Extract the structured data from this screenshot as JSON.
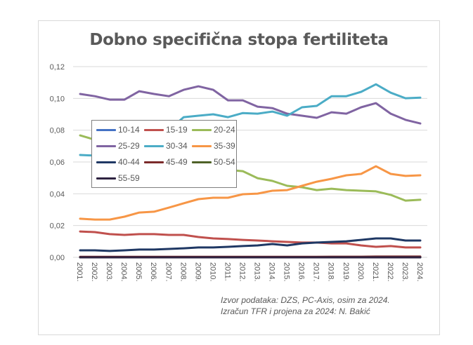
{
  "chart_data": {
    "type": "line",
    "title": "Dobno specifična stopa fertiliteta",
    "xlabel": "",
    "ylabel": "",
    "ylim": [
      0,
      0.12
    ],
    "yticks": [
      "0,00",
      "0,02",
      "0,04",
      "0,06",
      "0,08",
      "0,10",
      "0,12"
    ],
    "ytick_values": [
      0,
      0.02,
      0.04,
      0.06,
      0.08,
      0.1,
      0.12
    ],
    "grid": true,
    "legend_position": "upper-left inside",
    "categories": [
      "2001.",
      "2002.",
      "2003.",
      "2004.",
      "2005.",
      "2006.",
      "2007.",
      "2008.",
      "2009.",
      "2010.",
      "2011.",
      "2012.",
      "2013.",
      "2014.",
      "2015.",
      "2016.",
      "2017.",
      "2018.",
      "2019.",
      "2020.",
      "2021.",
      "2022.",
      "2023.",
      "2024."
    ],
    "series": [
      {
        "name": "10-14",
        "color": "#4472c4",
        "values": [
          0.0001,
          0.0001,
          0.0001,
          0.0001,
          0.0001,
          0.0001,
          0.0001,
          0.0001,
          0.0001,
          0.0001,
          0.0001,
          0.0001,
          0.0001,
          0.0001,
          0.0001,
          0.0001,
          0.0001,
          0.0001,
          0.0001,
          0.0001,
          0.0001,
          0.0001,
          0.0001,
          0.0001
        ]
      },
      {
        "name": "15-19",
        "color": "#c0504d",
        "values": [
          0.0163,
          0.0159,
          0.0146,
          0.0141,
          0.0146,
          0.0146,
          0.0141,
          0.0141,
          0.0128,
          0.0119,
          0.0115,
          0.011,
          0.0106,
          0.0101,
          0.0097,
          0.0093,
          0.0093,
          0.0088,
          0.0088,
          0.0075,
          0.0066,
          0.0071,
          0.0062,
          0.0062
        ]
      },
      {
        "name": "20-24",
        "color": "#9bbb59",
        "values": [
          0.0767,
          0.074,
          0.072,
          0.069,
          0.066,
          0.064,
          0.062,
          0.06,
          0.058,
          0.056,
          0.055,
          0.0542,
          0.0498,
          0.0481,
          0.045,
          0.0441,
          0.0423,
          0.0432,
          0.0423,
          0.0419,
          0.0415,
          0.0393,
          0.0357,
          0.0362
        ]
      },
      {
        "name": "25-29",
        "color": "#8064a2",
        "values": [
          0.1028,
          0.1014,
          0.0992,
          0.0992,
          0.1045,
          0.1028,
          0.1014,
          0.1054,
          0.1076,
          0.1054,
          0.0988,
          0.0988,
          0.0948,
          0.0939,
          0.0904,
          0.0891,
          0.0878,
          0.0913,
          0.0904,
          0.0944,
          0.097,
          0.0904,
          0.0865,
          0.0842
        ]
      },
      {
        "name": "30-34",
        "color": "#4bacc6",
        "values": [
          0.0644,
          0.064,
          0.066,
          0.07,
          0.074,
          0.077,
          0.08,
          0.0882,
          0.0891,
          0.09,
          0.0882,
          0.0908,
          0.0904,
          0.0917,
          0.0891,
          0.0944,
          0.0953,
          0.1014,
          0.1014,
          0.1041,
          0.1089,
          0.1036,
          0.1001,
          0.1005
        ]
      },
      {
        "name": "35-39",
        "color": "#f79646",
        "values": [
          0.0243,
          0.0238,
          0.0238,
          0.0256,
          0.0282,
          0.0287,
          0.0313,
          0.034,
          0.0366,
          0.0375,
          0.0375,
          0.0397,
          0.0401,
          0.0419,
          0.0423,
          0.045,
          0.0476,
          0.0494,
          0.0516,
          0.0525,
          0.0573,
          0.0525,
          0.0512,
          0.0516
        ]
      },
      {
        "name": "40-44",
        "color": "#1f3864",
        "values": [
          0.0044,
          0.0044,
          0.004,
          0.0044,
          0.0049,
          0.0049,
          0.0053,
          0.0057,
          0.0062,
          0.0062,
          0.0066,
          0.0071,
          0.0075,
          0.0084,
          0.0075,
          0.0088,
          0.0093,
          0.0097,
          0.0101,
          0.011,
          0.0119,
          0.0119,
          0.0106,
          0.0106
        ]
      },
      {
        "name": "45-49",
        "color": "#7b2a2a",
        "values": [
          0.0003,
          0.0003,
          0.0003,
          0.0003,
          0.0003,
          0.0003,
          0.0003,
          0.0003,
          0.0003,
          0.0003,
          0.0003,
          0.0003,
          0.0003,
          0.0003,
          0.0003,
          0.0003,
          0.0003,
          0.0004,
          0.0004,
          0.0004,
          0.0005,
          0.0005,
          0.0005,
          0.0005
        ]
      },
      {
        "name": "50-54",
        "color": "#4f6228",
        "values": [
          0.0,
          0.0,
          0.0,
          0.0,
          0.0,
          0.0,
          0.0,
          0.0,
          0.0,
          0.0,
          0.0,
          0.0,
          0.0,
          0.0,
          0.0,
          0.0,
          0.0,
          0.0,
          0.0,
          0.0,
          0.0,
          0.0,
          0.0,
          0.0
        ]
      },
      {
        "name": "55-59",
        "color": "#2e2240",
        "values": [
          0.0,
          0.0,
          0.0,
          0.0,
          0.0,
          0.0,
          0.0,
          0.0,
          0.0,
          0.0,
          0.0,
          0.0,
          0.0,
          0.0,
          0.0,
          0.0,
          0.0,
          0.0,
          0.0,
          0.0,
          0.0,
          0.0,
          0.0,
          0.0
        ]
      }
    ],
    "annotations": [
      "Izvor podataka: DZS, PC-Axis, osim za 2024.",
      "Izračun TFR i projena za 2024: N. Bakić"
    ]
  },
  "source": {
    "line1": "Izvor podataka: DZS, PC-Axis, osim za 2024.",
    "line2": "Izračun TFR i projena za 2024: N. Bakić"
  }
}
